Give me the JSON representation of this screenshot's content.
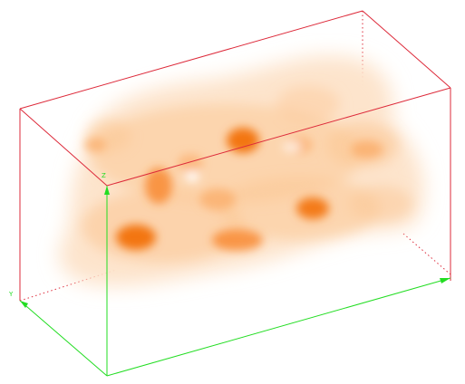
{
  "scene": {
    "type": "3d-volume-render",
    "volume_colors": [
      "#fde4cc",
      "#fcc896",
      "#fba964",
      "#f88a32",
      "#f26b06"
    ],
    "box_color": "#dd2a3a",
    "axis_color": "#22dd22"
  },
  "axes": {
    "x_label": "",
    "y_label": "Y",
    "z_label": "Z"
  }
}
